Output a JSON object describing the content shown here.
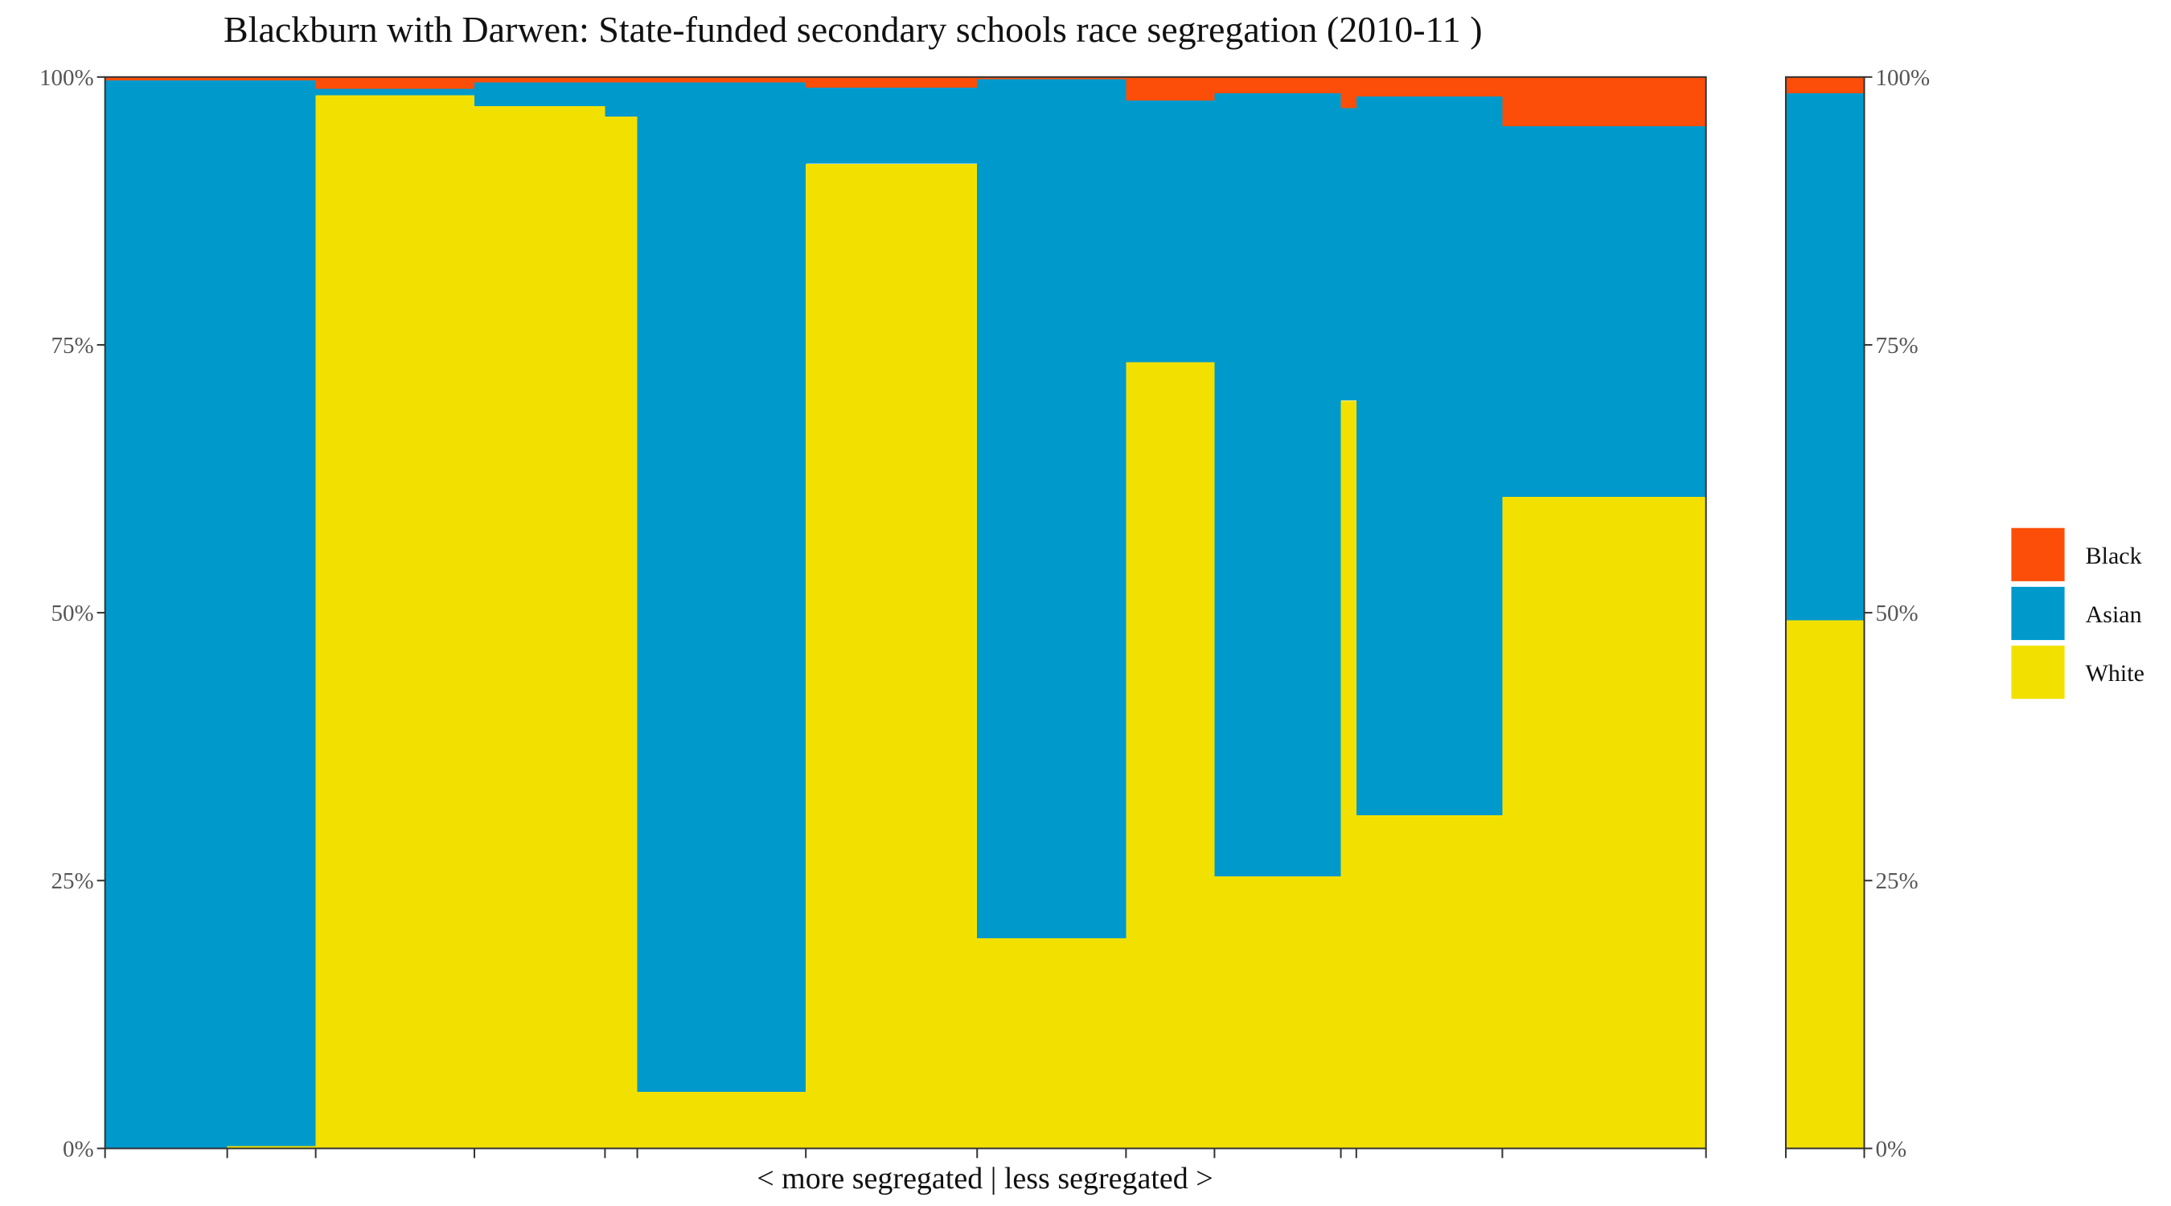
{
  "chart_data": {
    "type": "bar",
    "subtype": "stacked-marimekko",
    "title": "Blackburn with Darwen: State-funded secondary schools race segregation (2010-11 )",
    "xlabel": "< more segregated | less segregated >",
    "ylabel": "",
    "ylim": [
      0,
      1
    ],
    "y_ticks": [
      "0%",
      "25%",
      "50%",
      "75%",
      "100%"
    ],
    "stack_order": [
      "White",
      "Asian",
      "Black"
    ],
    "legend": {
      "position": "right",
      "items": [
        {
          "name": "Black",
          "color": "#fc4e08"
        },
        {
          "name": "Asian",
          "color": "#0099cc"
        },
        {
          "name": "White",
          "color": "#f2e100"
        }
      ]
    },
    "schools": [
      {
        "width": 87,
        "White": 0.0,
        "Asian": 0.997,
        "Black": 0.003
      },
      {
        "width": 63,
        "White": 0.002,
        "Asian": 0.995,
        "Black": 0.003
      },
      {
        "width": 113,
        "White": 0.983,
        "Asian": 0.006,
        "Black": 0.011
      },
      {
        "width": 93,
        "White": 0.973,
        "Asian": 0.022,
        "Black": 0.005
      },
      {
        "width": 23,
        "White": 0.963,
        "Asian": 0.032,
        "Black": 0.005
      },
      {
        "width": 120,
        "White": 0.053,
        "Asian": 0.942,
        "Black": 0.005
      },
      {
        "width": 122,
        "White": 0.919,
        "Asian": 0.071,
        "Black": 0.01
      },
      {
        "width": 106,
        "White": 0.196,
        "Asian": 0.802,
        "Black": 0.002
      },
      {
        "width": 63,
        "White": 0.734,
        "Asian": 0.244,
        "Black": 0.022
      },
      {
        "width": 90,
        "White": 0.254,
        "Asian": 0.731,
        "Black": 0.015
      },
      {
        "width": 11,
        "White": 0.698,
        "Asian": 0.273,
        "Black": 0.029
      },
      {
        "width": 104,
        "White": 0.311,
        "Asian": 0.671,
        "Black": 0.018
      },
      {
        "width": 145,
        "White": 0.608,
        "Asian": 0.346,
        "Black": 0.046
      }
    ],
    "total": {
      "White": 0.493,
      "Asian": 0.492,
      "Black": 0.015
    }
  }
}
